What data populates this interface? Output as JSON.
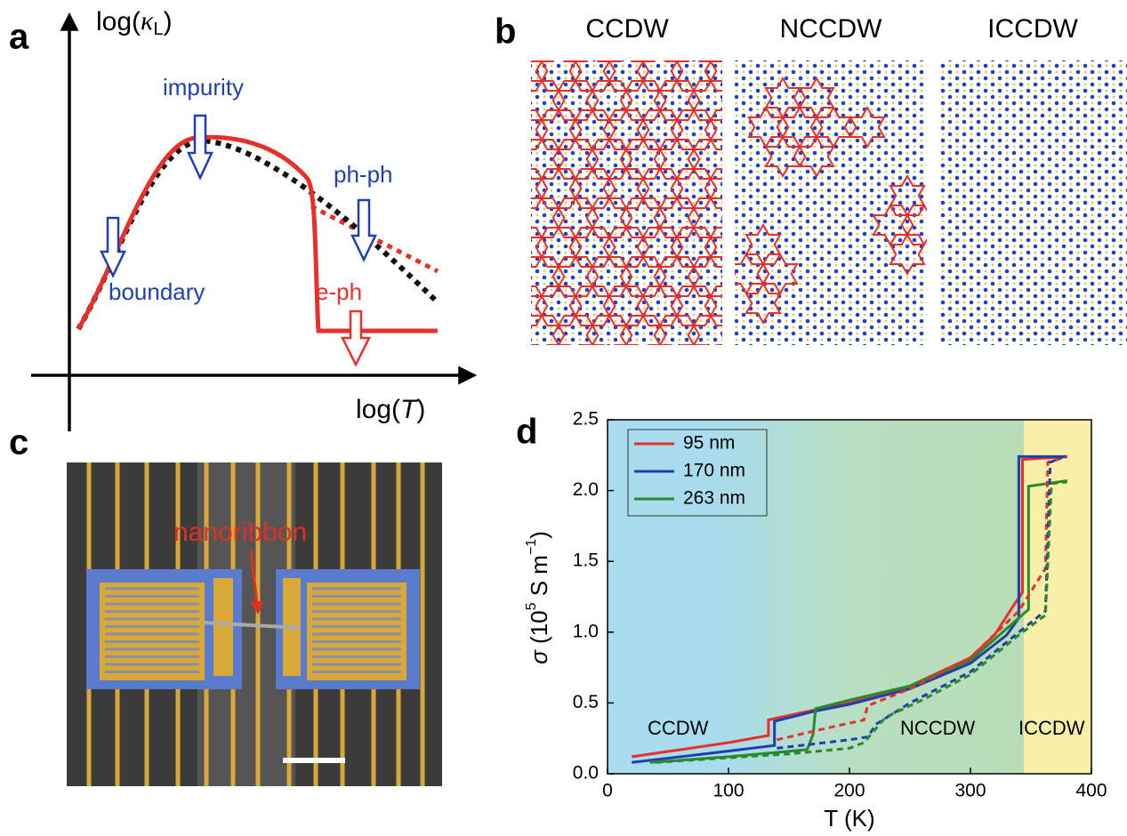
{
  "panel_labels": [
    "a",
    "b",
    "c",
    "d"
  ],
  "panel_a": {
    "y_label": {
      "pre": "log(",
      "symbol": "κ",
      "sub": "L",
      "post": ")"
    },
    "x_label": {
      "pre": "log(",
      "symbol": "T",
      "post": ")"
    },
    "annotations": [
      "impurity",
      "boundary",
      "ph-ph",
      "e-ph"
    ]
  },
  "panel_b": {
    "titles": [
      "CCDW",
      "NCCDW",
      "ICCDW"
    ]
  },
  "panel_c": {
    "label": "nanoribbon"
  },
  "chart_data": {
    "type": "line",
    "x_label": "T (K)",
    "y_label": {
      "symbol": "σ",
      "pre": " (10",
      "exp": "5",
      "unit": " S m",
      "unit_exp": "−1",
      "post": ")"
    },
    "region_labels": [
      "CCDW",
      "NCCDW",
      "ICCDW"
    ],
    "xlim": [
      0,
      400
    ],
    "xticks": [
      0,
      100,
      200,
      300,
      400
    ],
    "ylim": [
      0,
      2.5
    ],
    "yticks": [
      {
        "value": 0,
        "label": "0.0"
      },
      {
        "value": 0.5,
        "label": "0.5"
      },
      {
        "value": 1,
        "label": "1.0"
      },
      {
        "value": 1.5,
        "label": "1.5"
      },
      {
        "value": 2,
        "label": "2.0"
      },
      {
        "value": 2.5,
        "label": "2.5"
      }
    ],
    "series": [
      {
        "name": "95 nm",
        "color": "#e8302a",
        "dashed": false,
        "x": [
          20,
          100,
          133,
          133,
          160,
          200,
          250,
          300,
          320,
          335,
          343,
          343,
          380
        ],
        "values": [
          0.12,
          0.22,
          0.27,
          0.38,
          0.43,
          0.5,
          0.62,
          0.82,
          0.98,
          1.18,
          1.28,
          2.22,
          2.24
        ]
      },
      {
        "name": "170 nm",
        "color": "#1f3fb0",
        "dashed": false,
        "x": [
          20,
          100,
          138,
          138,
          170,
          200,
          250,
          300,
          330,
          340,
          340,
          380
        ],
        "values": [
          0.08,
          0.16,
          0.2,
          0.37,
          0.44,
          0.49,
          0.6,
          0.78,
          0.98,
          1.1,
          2.24,
          2.24
        ]
      },
      {
        "name": "263 nm",
        "color": "#2a8a2a",
        "dashed": false,
        "x": [
          35,
          100,
          165,
          170,
          172,
          200,
          250,
          300,
          340,
          348,
          348,
          380
        ],
        "values": [
          0.08,
          0.12,
          0.17,
          0.28,
          0.46,
          0.52,
          0.62,
          0.8,
          1.1,
          1.16,
          2.03,
          2.07
        ]
      },
      {
        "color": "#e8302a",
        "dashed": true,
        "x": [
          140,
          180,
          212,
          215,
          250,
          300,
          340,
          362,
          364,
          380
        ],
        "values": [
          0.24,
          0.32,
          0.38,
          0.48,
          0.6,
          0.82,
          1.15,
          1.45,
          2.2,
          2.24
        ]
      },
      {
        "color": "#1f3fb0",
        "dashed": true,
        "x": [
          140,
          200,
          215,
          222,
          250,
          300,
          340,
          362,
          366,
          380
        ],
        "values": [
          0.18,
          0.24,
          0.26,
          0.35,
          0.5,
          0.72,
          1.0,
          1.15,
          2.2,
          2.25
        ]
      },
      {
        "color": "#2a8a2a",
        "dashed": true,
        "x": [
          40,
          150,
          200,
          212,
          230,
          260,
          300,
          340,
          362,
          367,
          380
        ],
        "values": [
          0.08,
          0.14,
          0.18,
          0.22,
          0.4,
          0.52,
          0.7,
          0.98,
          1.12,
          2.05,
          2.06
        ]
      }
    ]
  }
}
